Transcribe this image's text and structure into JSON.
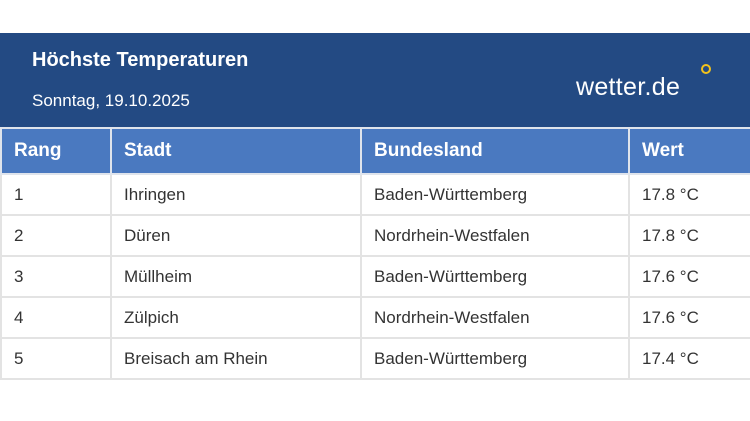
{
  "header": {
    "title": "Höchste Temperaturen",
    "date": "Sonntag, 19.10.2025",
    "logo": "wetter.de"
  },
  "table": {
    "columns": [
      "Rang",
      "Stadt",
      "Bundesland",
      "Wert"
    ],
    "rows": [
      [
        "1",
        "Ihringen",
        "Baden-Württemberg",
        "17.8 °C"
      ],
      [
        "2",
        "Düren",
        "Nordrhein-Westfalen",
        "17.8 °C"
      ],
      [
        "3",
        "Müllheim",
        "Baden-Württemberg",
        "17.6 °C"
      ],
      [
        "4",
        "Zülpich",
        "Nordrhein-Westfalen",
        "17.6 °C"
      ],
      [
        "5",
        "Breisach am Rhein",
        "Baden-Württemberg",
        "17.4 °C"
      ]
    ]
  }
}
